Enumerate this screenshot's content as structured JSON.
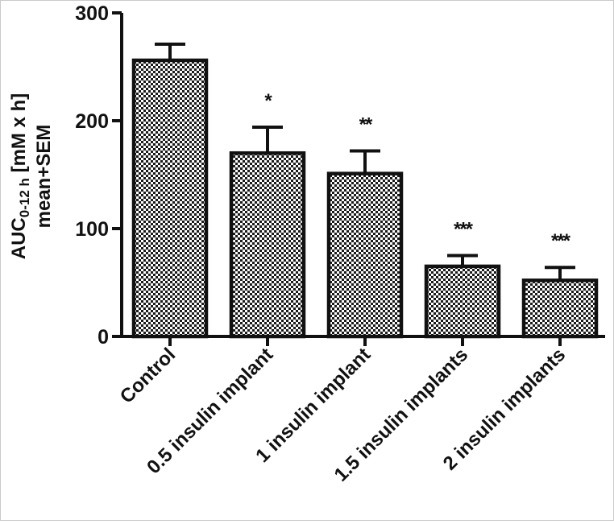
{
  "chart_data": {
    "type": "bar",
    "title": "",
    "xlabel": "",
    "ylabel": {
      "main": "AUC",
      "subscript": "0-12 h",
      "units": " [mM x h]",
      "line2": "mean+SEM"
    },
    "categories": [
      "Control",
      "0.5 insulin implant",
      "1 insulin implant",
      "1.5 insulin implants",
      "2 insulin implants"
    ],
    "values": [
      256,
      170,
      151,
      65,
      52
    ],
    "errors": [
      15,
      24,
      21,
      10,
      12
    ],
    "significance": [
      "",
      "*",
      "**",
      "***",
      "***"
    ],
    "ylim": [
      0,
      300
    ],
    "yticks": [
      0,
      100,
      200,
      300
    ],
    "ytick_labels": [
      "0",
      "100",
      "200",
      "300"
    ],
    "bar_fill": "checkered",
    "colors": {
      "bar_edge": "#111111",
      "checker_dark": "#1a1a1a",
      "checker_light": "#ffffff"
    },
    "grid": false,
    "legend": false
  }
}
